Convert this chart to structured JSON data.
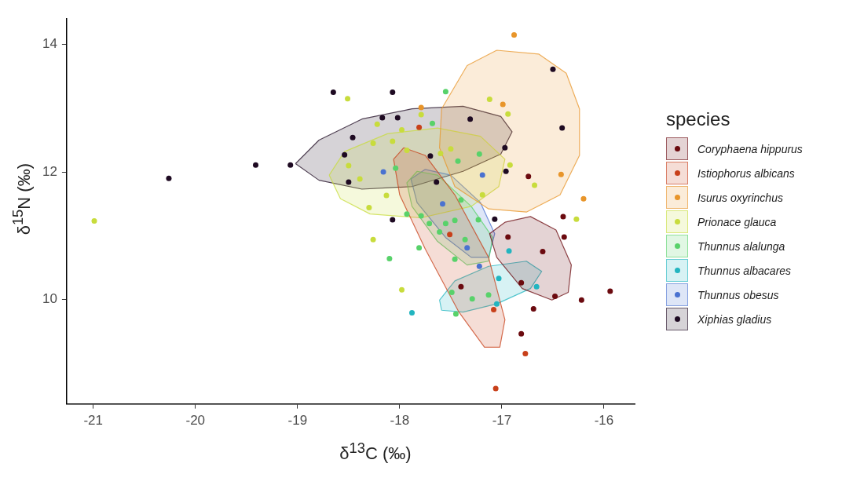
{
  "chart_data": {
    "type": "scatter",
    "xlabel": "δ$^{13}$C (‰)",
    "ylabel": "δ$^{15}$N (‰)",
    "legend_title": "species",
    "legend": "right",
    "grid": false,
    "xlim": [
      -21.26,
      -15.7
    ],
    "ylim": [
      8.36,
      14.4
    ],
    "xticks": [
      -21,
      -20,
      -19,
      -18,
      -17,
      -16
    ],
    "yticks": [
      10,
      12,
      14
    ],
    "series": [
      {
        "name": "Coryphaena hippurus",
        "color": "#6b0a0f",
        "marker": "circle",
        "x": [
          -16.74,
          -16.94,
          -16.6,
          -16.81,
          -17.4,
          -16.69,
          -16.4,
          -16.39,
          -16.48,
          -16.22,
          -15.94,
          -16.81
        ],
        "values": [
          11.93,
          10.98,
          10.75,
          10.26,
          10.2,
          9.85,
          11.3,
          10.98,
          10.05,
          9.99,
          10.13,
          9.46
        ]
      },
      {
        "name": "Istiophorus albicans",
        "color": "#c8401a",
        "marker": "circle",
        "x": [
          -17.81,
          -17.51,
          -17.08,
          -16.77,
          -17.06
        ],
        "values": [
          12.7,
          11.02,
          9.84,
          9.15,
          8.6
        ]
      },
      {
        "name": "Isurus oxyrinchus",
        "color": "#e8952a",
        "marker": "circle",
        "x": [
          -16.88,
          -17.79,
          -16.99,
          -16.42,
          -16.2
        ],
        "values": [
          14.15,
          13.01,
          13.06,
          11.96,
          11.58
        ]
      },
      {
        "name": "Prionace glauca",
        "color": "#c8dc3c",
        "marker": "circle",
        "x": [
          -20.99,
          -18.51,
          -18.22,
          -17.98,
          -17.79,
          -18.26,
          -18.07,
          -18.5,
          -18.39,
          -18.13,
          -18.3,
          -17.93,
          -17.6,
          -17.5,
          -17.19,
          -17.12,
          -16.94,
          -16.92,
          -16.68,
          -16.27,
          -18.26,
          -17.98
        ],
        "values": [
          11.23,
          13.15,
          12.75,
          12.66,
          12.9,
          12.45,
          12.48,
          12.1,
          11.89,
          11.63,
          11.44,
          12.34,
          12.29,
          12.36,
          11.64,
          13.14,
          12.91,
          12.11,
          11.79,
          11.26,
          10.94,
          10.15
        ]
      },
      {
        "name": "Thunnus alalunga",
        "color": "#58d26a",
        "marker": "circle",
        "x": [
          -17.55,
          -17.68,
          -17.22,
          -17.43,
          -18.04,
          -18.1,
          -17.79,
          -17.71,
          -17.55,
          -17.46,
          -17.61,
          -17.36,
          -17.81,
          -17.46,
          -17.23,
          -17.49,
          -17.29,
          -17.13,
          -17.4,
          -17.93,
          -17.45
        ],
        "values": [
          13.26,
          12.76,
          12.28,
          12.17,
          12.06,
          10.64,
          11.31,
          11.19,
          11.19,
          11.24,
          11.06,
          10.94,
          10.81,
          10.63,
          11.25,
          10.11,
          10.01,
          10.07,
          11.56,
          11.34,
          9.77
        ]
      },
      {
        "name": "Thunnus albacares",
        "color": "#22b5c0",
        "marker": "circle",
        "x": [
          -16.93,
          -16.66,
          -17.03,
          -17.88,
          -17.05
        ],
        "values": [
          10.76,
          10.2,
          10.33,
          9.79,
          9.93
        ]
      },
      {
        "name": "Thunnus obesus",
        "color": "#4a72d0",
        "marker": "circle",
        "x": [
          -18.16,
          -17.58,
          -17.34,
          -17.22,
          -17.19
        ],
        "values": [
          12.0,
          11.5,
          10.81,
          10.52,
          11.95
        ]
      },
      {
        "name": "Xiphias gladius",
        "color": "#1e0a22",
        "marker": "circle",
        "x": [
          -20.26,
          -19.41,
          -19.07,
          -18.65,
          -18.07,
          -18.17,
          -18.02,
          -18.46,
          -18.54,
          -18.5,
          -17.31,
          -17.7,
          -17.64,
          -16.5,
          -16.41,
          -16.97,
          -16.96,
          -18.07,
          -17.07
        ],
        "values": [
          11.9,
          12.11,
          12.11,
          13.25,
          13.25,
          12.85,
          12.85,
          12.54,
          12.27,
          11.84,
          12.83,
          12.25,
          11.84,
          13.61,
          12.69,
          12.38,
          12.01,
          11.25,
          11.26
        ]
      },
      {
        "type": "area",
        "color": "#6b0a0f",
        "marker": "none",
        "x": [
          -16.97,
          -16.72,
          -16.47,
          -16.32,
          -16.35,
          -16.51,
          -16.8,
          -17.05,
          -17.12,
          -16.97
        ],
        "values": [
          11.21,
          11.3,
          11.09,
          10.54,
          10.11,
          9.99,
          10.17,
          10.66,
          11.03,
          11.21
        ]
      },
      {
        "type": "area",
        "color": "#c8401a",
        "marker": "none",
        "x": [
          -17.96,
          -17.75,
          -17.46,
          -17.13,
          -16.97,
          -17.02,
          -17.17,
          -17.42,
          -17.75,
          -18.0,
          -18.06,
          -17.96
        ],
        "values": [
          12.38,
          12.26,
          11.64,
          10.66,
          9.68,
          9.25,
          9.25,
          9.8,
          10.79,
          11.64,
          12.2,
          12.38
        ]
      },
      {
        "type": "area",
        "color": "#e8952a",
        "marker": "none",
        "x": [
          -17.05,
          -16.64,
          -16.37,
          -16.24,
          -16.24,
          -16.43,
          -16.76,
          -17.13,
          -17.46,
          -17.61,
          -17.59,
          -17.34,
          -17.05
        ],
        "values": [
          13.91,
          13.85,
          13.55,
          12.99,
          12.26,
          11.64,
          11.37,
          11.42,
          11.77,
          12.38,
          12.99,
          13.67,
          13.91
        ]
      },
      {
        "type": "area",
        "color": "#c8dc3c",
        "marker": "none",
        "x": [
          -18.69,
          -18.54,
          -18.12,
          -17.63,
          -17.21,
          -16.97,
          -17.03,
          -17.3,
          -17.79,
          -18.29,
          -18.58,
          -18.69
        ],
        "values": [
          11.95,
          12.32,
          12.6,
          12.69,
          12.56,
          12.2,
          11.77,
          11.46,
          11.28,
          11.34,
          11.58,
          11.95
        ]
      },
      {
        "type": "area",
        "color": "#58d26a",
        "marker": "none",
        "x": [
          -17.83,
          -17.63,
          -17.3,
          -17.09,
          -17.13,
          -17.34,
          -17.63,
          -17.88,
          -17.93,
          -17.83
        ],
        "values": [
          12.01,
          11.95,
          11.46,
          10.97,
          10.6,
          10.54,
          10.91,
          11.46,
          11.83,
          12.01
        ]
      },
      {
        "type": "area",
        "color": "#22b5c0",
        "marker": "none",
        "x": [
          -17.61,
          -17.46,
          -17.13,
          -16.76,
          -16.61,
          -16.72,
          -17.05,
          -17.38,
          -17.59,
          -17.61
        ],
        "values": [
          9.99,
          10.29,
          10.52,
          10.6,
          10.44,
          10.17,
          9.93,
          9.8,
          9.83,
          9.99
        ]
      },
      {
        "type": "area",
        "color": "#4a72d0",
        "marker": "none",
        "x": [
          -17.75,
          -17.5,
          -17.21,
          -17.07,
          -17.13,
          -17.3,
          -17.55,
          -17.83,
          -17.89,
          -17.75
        ],
        "values": [
          12.04,
          11.95,
          11.52,
          11.03,
          10.66,
          10.66,
          10.97,
          11.52,
          11.89,
          12.04
        ]
      },
      {
        "type": "area",
        "color": "#1e0a22",
        "marker": "none",
        "x": [
          -19.02,
          -18.79,
          -18.37,
          -17.88,
          -17.38,
          -17.01,
          -16.9,
          -17.01,
          -17.38,
          -17.88,
          -18.37,
          -18.79,
          -19.02
        ],
        "values": [
          12.13,
          12.5,
          12.83,
          12.99,
          13.03,
          12.87,
          12.63,
          12.28,
          12.01,
          11.77,
          11.73,
          11.87,
          12.13
        ]
      }
    ]
  }
}
